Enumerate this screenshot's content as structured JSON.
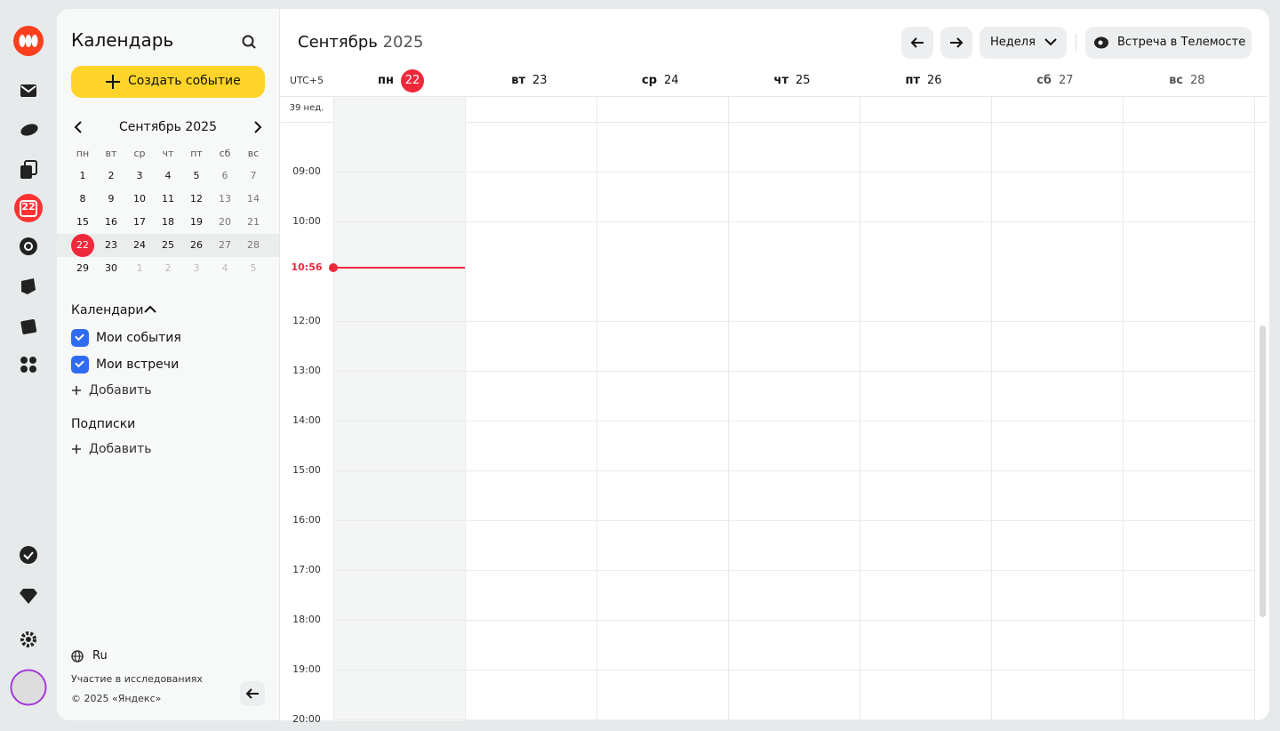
{
  "rail": {
    "calendar_day": 22
  },
  "sidebar": {
    "title": "Календарь",
    "create_button": "Создать событие",
    "mini_calendar": {
      "title": "Сентябрь 2025",
      "weekdays": [
        "пн",
        "вт",
        "ср",
        "чт",
        "пт",
        "сб",
        "вс"
      ],
      "weeks": [
        [
          1,
          2,
          3,
          4,
          5,
          6,
          7
        ],
        [
          8,
          9,
          10,
          11,
          12,
          13,
          14
        ],
        [
          15,
          16,
          17,
          18,
          19,
          20,
          21
        ],
        [
          22,
          23,
          24,
          25,
          26,
          27,
          28
        ],
        [
          29,
          30,
          1,
          2,
          3,
          4,
          5
        ]
      ]
    },
    "calendars": {
      "title": "Календари",
      "items": [
        "Мои события",
        "Мои встречи"
      ],
      "add": "Добавить"
    },
    "subscriptions": {
      "title": "Подписки",
      "add": "Добавить"
    },
    "footer": {
      "language": "Ru",
      "research": "Участие в исследованиях",
      "copyright": "© 2025 «Яндекс»"
    }
  },
  "header": {
    "month": "Сентябрь",
    "year": "2025",
    "view": "Неделя",
    "telemost": "Встреча в Телемосте"
  },
  "grid": {
    "timezone": "UTC+5",
    "week_label": "39 нед.",
    "days": [
      {
        "weekday": "пн",
        "day": 22
      },
      {
        "weekday": "вт",
        "day": 23
      },
      {
        "weekday": "ср",
        "day": 24
      },
      {
        "weekday": "чт",
        "day": 25
      },
      {
        "weekday": "пт",
        "day": 26
      },
      {
        "weekday": "сб",
        "day": 27
      },
      {
        "weekday": "вс",
        "day": 28
      }
    ],
    "hours": [
      "09:00",
      "10:00",
      "12:00",
      "13:00",
      "14:00",
      "15:00",
      "16:00",
      "17:00",
      "18:00",
      "19:00",
      "20:00"
    ],
    "current_time": "10:56"
  }
}
